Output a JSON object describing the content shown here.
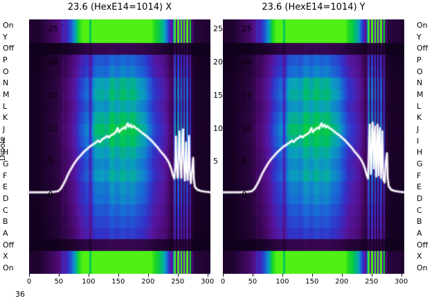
{
  "window": {
    "background": "#ffffff",
    "text_color": "#000000"
  },
  "dipole_axis_label": "Dipole",
  "corner_value": "36",
  "dipole_labels": [
    "On",
    "Y",
    "Off",
    "P",
    "O",
    "N",
    "M",
    "L",
    "K",
    "J",
    "I",
    "H",
    "G",
    "F",
    "E",
    "D",
    "C",
    "B",
    "A",
    "Off",
    "X",
    "On"
  ],
  "chart_data": {
    "type": "heatmap",
    "description": "Two dipole-element scan heatmaps (X and Y planes) with a white intensity profile line overlaid",
    "x_ticks": [
      0,
      50,
      100,
      150,
      200,
      250,
      300
    ],
    "y_ticks": [
      25,
      20,
      15,
      10,
      5,
      0
    ],
    "y_tick_prefix": "- ",
    "x_range": [
      0,
      305
    ],
    "y_range": [
      -11.9,
      26.5
    ],
    "line_color": "#ffffff",
    "colormap_stops": [
      [
        0,
        [
          12,
          0,
          22
        ]
      ],
      [
        0.1,
        [
          40,
          4,
          60
        ]
      ],
      [
        0.22,
        [
          74,
          10,
          110
        ]
      ],
      [
        0.34,
        [
          86,
          22,
          160
        ]
      ],
      [
        0.46,
        [
          50,
          50,
          200
        ]
      ],
      [
        0.58,
        [
          25,
          105,
          215
        ]
      ],
      [
        0.68,
        [
          10,
          160,
          190
        ]
      ],
      [
        0.78,
        [
          0,
          195,
          90
        ]
      ],
      [
        0.88,
        [
          30,
          215,
          35
        ]
      ],
      [
        1,
        [
          80,
          240,
          20
        ]
      ]
    ],
    "row_factors": [
      1.5,
      1.5,
      0.16,
      0.62,
      0.68,
      0.74,
      0.82,
      0.75,
      0.78,
      0.84,
      0.8,
      0.76,
      0.73,
      0.75,
      0.68,
      0.64,
      0.6,
      0.55,
      0.5,
      0.16,
      1.5,
      1.5
    ],
    "column_profile": [
      [
        0,
        0.04
      ],
      [
        18,
        0.05
      ],
      [
        28,
        0.09
      ],
      [
        38,
        0.12
      ],
      [
        48,
        0.15
      ],
      [
        58,
        0.24
      ],
      [
        68,
        0.34
      ],
      [
        78,
        0.46
      ],
      [
        88,
        0.6
      ],
      [
        98,
        0.72
      ],
      [
        108,
        0.8
      ],
      [
        118,
        0.85
      ],
      [
        128,
        0.88
      ],
      [
        138,
        0.9
      ],
      [
        148,
        0.92
      ],
      [
        158,
        0.95
      ],
      [
        168,
        0.95
      ],
      [
        178,
        0.9
      ],
      [
        188,
        0.85
      ],
      [
        198,
        0.78
      ],
      [
        208,
        0.66
      ],
      [
        218,
        0.56
      ],
      [
        228,
        0.46
      ],
      [
        236,
        0.32
      ],
      [
        242,
        0.2
      ],
      [
        248,
        0.13
      ],
      [
        262,
        0.11
      ],
      [
        272,
        0.09
      ],
      [
        282,
        0.07
      ],
      [
        292,
        0.06
      ],
      [
        305,
        0.05
      ]
    ],
    "streaks": [
      [
        57,
        0.3
      ],
      [
        103,
        0.55
      ],
      [
        243.5,
        0.5
      ],
      [
        246,
        0.85
      ],
      [
        248.5,
        0.22
      ],
      [
        251,
        0.8
      ],
      [
        253.5,
        0.26
      ],
      [
        256,
        0.75
      ],
      [
        258.5,
        0.24
      ],
      [
        261,
        0.7
      ],
      [
        263.5,
        0.22
      ],
      [
        266,
        0.66
      ],
      [
        268.5,
        0.2
      ],
      [
        271,
        0.55
      ],
      [
        274.5,
        0.14
      ]
    ],
    "charts": [
      {
        "title": "23.6 (HexE14=1014) X",
        "y_ticks_right": [
          25,
          20,
          15,
          10,
          5
        ],
        "line": [
          [
            0,
            0.4
          ],
          [
            14,
            0.4
          ],
          [
            28,
            0.4
          ],
          [
            40,
            0.45
          ],
          [
            48,
            0.55
          ],
          [
            53,
            0.9
          ],
          [
            57,
            1.5
          ],
          [
            61,
            2.2
          ],
          [
            65,
            3.0
          ],
          [
            69,
            3.7
          ],
          [
            73,
            4.3
          ],
          [
            77,
            4.9
          ],
          [
            82,
            5.5
          ],
          [
            87,
            6.0
          ],
          [
            92,
            6.5
          ],
          [
            97,
            6.9
          ],
          [
            102,
            7.3
          ],
          [
            107,
            7.6
          ],
          [
            112,
            7.9
          ],
          [
            116,
            8.2
          ],
          [
            119,
            8.0
          ],
          [
            123,
            8.4
          ],
          [
            127,
            8.6
          ],
          [
            131,
            8.9
          ],
          [
            134,
            8.7
          ],
          [
            138,
            9.0
          ],
          [
            142,
            9.2
          ],
          [
            146,
            9.5
          ],
          [
            149,
            10.1
          ],
          [
            151,
            9.5
          ],
          [
            154,
            9.8
          ],
          [
            157,
            10.0
          ],
          [
            160,
            10.2
          ],
          [
            162,
            10.0
          ],
          [
            164,
            10.5
          ],
          [
            166,
            10.8
          ],
          [
            168,
            10.3
          ],
          [
            171,
            10.6
          ],
          [
            173,
            10.2
          ],
          [
            176,
            10.4
          ],
          [
            179,
            10.1
          ],
          [
            183,
            9.9
          ],
          [
            187,
            9.6
          ],
          [
            191,
            9.3
          ],
          [
            196,
            9.0
          ],
          [
            201,
            8.6
          ],
          [
            206,
            8.2
          ],
          [
            211,
            7.7
          ],
          [
            216,
            7.2
          ],
          [
            221,
            6.6
          ],
          [
            226,
            6.1
          ],
          [
            231,
            5.5
          ],
          [
            235,
            4.9
          ],
          [
            239,
            4.0
          ],
          [
            242,
            3.0
          ],
          [
            244,
            2.5
          ],
          [
            246,
            4.0
          ],
          [
            247,
            8.8
          ],
          [
            248,
            4.5
          ],
          [
            250,
            2.6
          ],
          [
            252,
            7.6
          ],
          [
            253,
            9.6
          ],
          [
            254,
            5.5
          ],
          [
            256,
            2.6
          ],
          [
            258,
            8.6
          ],
          [
            259,
            9.9
          ],
          [
            260,
            5.5
          ],
          [
            262,
            2.2
          ],
          [
            263,
            4.6
          ],
          [
            264,
            7.9
          ],
          [
            265,
            3.8
          ],
          [
            267,
            2.3
          ],
          [
            268,
            6.1
          ],
          [
            269,
            8.9
          ],
          [
            270,
            4.2
          ],
          [
            272,
            1.8
          ],
          [
            274,
            3.6
          ],
          [
            276,
            5.6
          ],
          [
            277,
            2.4
          ],
          [
            279,
            1.2
          ],
          [
            283,
            0.8
          ],
          [
            289,
            0.6
          ],
          [
            296,
            0.5
          ],
          [
            305,
            0.4
          ]
        ]
      },
      {
        "title": "23.6 (HexE14=1014) Y",
        "y_ticks_right": [],
        "line": [
          [
            0,
            0.4
          ],
          [
            14,
            0.4
          ],
          [
            28,
            0.4
          ],
          [
            40,
            0.45
          ],
          [
            48,
            0.55
          ],
          [
            53,
            0.9
          ],
          [
            57,
            1.5
          ],
          [
            61,
            2.2
          ],
          [
            65,
            3.0
          ],
          [
            69,
            3.7
          ],
          [
            73,
            4.3
          ],
          [
            77,
            4.9
          ],
          [
            82,
            5.5
          ],
          [
            87,
            6.0
          ],
          [
            92,
            6.5
          ],
          [
            97,
            6.9
          ],
          [
            102,
            7.3
          ],
          [
            107,
            7.6
          ],
          [
            112,
            7.9
          ],
          [
            116,
            8.2
          ],
          [
            119,
            8.0
          ],
          [
            123,
            8.4
          ],
          [
            127,
            8.6
          ],
          [
            131,
            8.9
          ],
          [
            134,
            8.7
          ],
          [
            138,
            9.0
          ],
          [
            142,
            9.2
          ],
          [
            146,
            9.5
          ],
          [
            149,
            10.1
          ],
          [
            151,
            9.5
          ],
          [
            154,
            9.8
          ],
          [
            157,
            10.0
          ],
          [
            160,
            10.2
          ],
          [
            162,
            10.0
          ],
          [
            164,
            10.5
          ],
          [
            166,
            10.8
          ],
          [
            168,
            10.3
          ],
          [
            171,
            10.6
          ],
          [
            173,
            10.2
          ],
          [
            176,
            10.4
          ],
          [
            179,
            10.1
          ],
          [
            183,
            9.9
          ],
          [
            187,
            9.6
          ],
          [
            191,
            9.3
          ],
          [
            196,
            9.0
          ],
          [
            201,
            8.6
          ],
          [
            206,
            8.2
          ],
          [
            211,
            7.7
          ],
          [
            216,
            7.2
          ],
          [
            221,
            6.6
          ],
          [
            226,
            6.1
          ],
          [
            231,
            5.5
          ],
          [
            235,
            4.9
          ],
          [
            239,
            4.0
          ],
          [
            242,
            3.0
          ],
          [
            244,
            2.5
          ],
          [
            245,
            4.5
          ],
          [
            246,
            8.2
          ],
          [
            247,
            10.6
          ],
          [
            248,
            6.5
          ],
          [
            249,
            3.2
          ],
          [
            250,
            5.2
          ],
          [
            251,
            9.6
          ],
          [
            252,
            10.9
          ],
          [
            253,
            7.5
          ],
          [
            254,
            4.0
          ],
          [
            255,
            9.2
          ],
          [
            256,
            10.3
          ],
          [
            257,
            5.2
          ],
          [
            258,
            2.8
          ],
          [
            259,
            7.8
          ],
          [
            260,
            10.6
          ],
          [
            261,
            5.8
          ],
          [
            262,
            3.0
          ],
          [
            263,
            9.0
          ],
          [
            264,
            10.1
          ],
          [
            265,
            4.8
          ],
          [
            266,
            2.6
          ],
          [
            267,
            6.6
          ],
          [
            268,
            9.6
          ],
          [
            269,
            4.4
          ],
          [
            270,
            2.3
          ],
          [
            272,
            1.9
          ],
          [
            274,
            4.9
          ],
          [
            276,
            6.3
          ],
          [
            277,
            2.6
          ],
          [
            279,
            1.3
          ],
          [
            283,
            0.8
          ],
          [
            289,
            0.6
          ],
          [
            296,
            0.5
          ],
          [
            305,
            0.4
          ]
        ]
      }
    ]
  }
}
